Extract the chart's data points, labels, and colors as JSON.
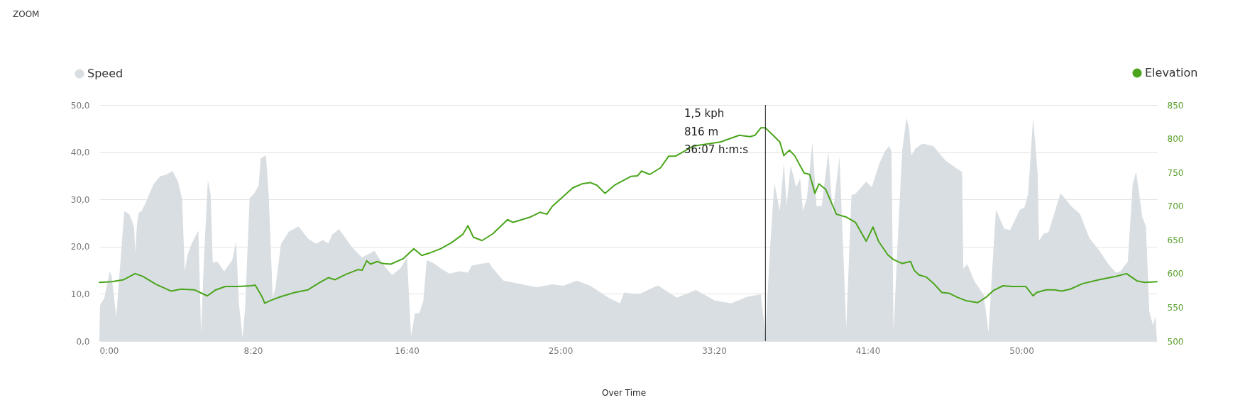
{
  "chart_data": {
    "type": "area",
    "title": "ZOOM",
    "xlim": [
      0,
      3441
    ],
    "xticks": [
      {
        "value": 0,
        "label": "0:00"
      },
      {
        "value": 500,
        "label": "8:20"
      },
      {
        "value": 1000,
        "label": "16:40"
      },
      {
        "value": 1500,
        "label": "25:00"
      },
      {
        "value": 2000,
        "label": "33:20"
      },
      {
        "value": 2500,
        "label": "41:40"
      },
      {
        "value": 3000,
        "label": "50:00"
      }
    ],
    "ylim": [
      0,
      50
    ],
    "yticks": [
      {
        "value": 0,
        "label": "0,0"
      },
      {
        "value": 10,
        "label": "10,0"
      },
      {
        "value": 20,
        "label": "20,0"
      },
      {
        "value": 30,
        "label": "30,0"
      },
      {
        "value": 40,
        "label": "40,0"
      },
      {
        "value": 50,
        "label": "50,0"
      }
    ],
    "y2lim": [
      500,
      850
    ],
    "y2ticks": [
      500,
      550,
      600,
      650,
      700,
      750,
      800,
      850
    ],
    "grid": "y",
    "legend": "top",
    "series": [
      {
        "name": "Speed",
        "color": "#d9dee2",
        "x": [
          0,
          2,
          16,
          34,
          40,
          55,
          81,
          97,
          106,
          113,
          117,
          122,
          128,
          137,
          150,
          176,
          198,
          216,
          238,
          256,
          269,
          278,
          287,
          300,
          322,
          331,
          340,
          353,
          362,
          369,
          384,
          406,
          432,
          445,
          454,
          466,
          474,
          489,
          503,
          518,
          525,
          542,
          551,
          564,
          573,
          591,
          617,
          648,
          679,
          705,
          727,
          745,
          758,
          780,
          802,
          820,
          855,
          895,
          926,
          952,
          979,
          1001,
          1014,
          1027,
          1041,
          1054,
          1065,
          1085,
          1111,
          1138,
          1173,
          1199,
          1212,
          1243,
          1268,
          1280,
          1315,
          1421,
          1474,
          1509,
          1553,
          1597,
          1659,
          1694,
          1707,
          1755,
          1817,
          1879,
          1941,
          2002,
          2055,
          2108,
          2152,
          2167,
          2183,
          2196,
          2214,
          2227,
          2236,
          2249,
          2267,
          2280,
          2289,
          2302,
          2320,
          2333,
          2350,
          2372,
          2386,
          2408,
          2430,
          2447,
          2460,
          2495,
          2513,
          2539,
          2557,
          2569,
          2577,
          2584,
          2596,
          2612,
          2626,
          2635,
          2641,
          2647,
          2655,
          2678,
          2713,
          2752,
          2784,
          2807,
          2811,
          2824,
          2846,
          2877,
          2893,
          2905,
          2917,
          2944,
          2963,
          2995,
          3010,
          3022,
          3038,
          3053,
          3057,
          3073,
          3088,
          3127,
          3166,
          3190,
          3221,
          3252,
          3283,
          3307,
          3322,
          3346,
          3362,
          3373,
          3381,
          3393,
          3405,
          3416,
          3428,
          3436,
          3441
        ],
        "values": [
          0,
          7.6,
          9.1,
          14.8,
          13.7,
          5.1,
          27.5,
          26.9,
          25.5,
          24.0,
          18.6,
          24.5,
          27.2,
          27.5,
          29.2,
          33.2,
          34.9,
          35.2,
          36.0,
          33.8,
          30.1,
          14.8,
          18.3,
          20.6,
          23.4,
          1.6,
          17.1,
          34.1,
          30.9,
          16.6,
          16.8,
          14.8,
          17.1,
          21.1,
          7.9,
          0.7,
          6.8,
          30.3,
          31.2,
          32.9,
          38.7,
          39.3,
          30.9,
          9.1,
          11.4,
          20.6,
          23.2,
          24.3,
          21.7,
          20.6,
          21.4,
          20.7,
          22.6,
          23.7,
          21.7,
          20.0,
          17.7,
          19.1,
          16.0,
          14.0,
          15.4,
          17.7,
          1.0,
          5.9,
          5.9,
          8.5,
          17.1,
          16.6,
          15.4,
          14.3,
          14.8,
          14.5,
          16.0,
          16.4,
          16.6,
          15.4,
          12.8,
          11.4,
          12.0,
          11.7,
          12.8,
          11.7,
          9.1,
          8.0,
          10.3,
          9.9,
          11.8,
          9.2,
          10.8,
          8.6,
          8.0,
          9.4,
          9.9,
          1.5,
          20.6,
          33.5,
          27.5,
          37.8,
          28.6,
          37.2,
          32.6,
          34.4,
          27.5,
          30.3,
          42.1,
          28.6,
          28.6,
          40.1,
          26.9,
          39.0,
          2.8,
          30.9,
          31.2,
          33.8,
          32.6,
          37.8,
          40.3,
          41.3,
          40.3,
          1.8,
          19.3,
          40.3,
          47.3,
          44.8,
          39.3,
          39.8,
          40.8,
          41.8,
          41.3,
          38.3,
          36.8,
          35.8,
          15.3,
          16.3,
          12.8,
          9.8,
          1.8,
          15.3,
          27.8,
          23.8,
          23.5,
          27.8,
          28.3,
          31.3,
          47.3,
          35.3,
          21.3,
          22.8,
          23.0,
          31.3,
          28.3,
          27.0,
          21.8,
          19.3,
          16.3,
          14.5,
          14.8,
          16.8,
          33.3,
          35.8,
          32.3,
          26.3,
          24.3,
          6.3,
          3.3,
          5.3,
          0
        ]
      },
      {
        "name": "Elevation",
        "type": "line",
        "axis": "y2",
        "color": "#4aa51b",
        "x": [
          0,
          40,
          79,
          116,
          141,
          185,
          234,
          265,
          309,
          351,
          379,
          410,
          450,
          494,
          507,
          529,
          538,
          556,
          591,
          635,
          679,
          714,
          745,
          767,
          802,
          842,
          855,
          870,
          882,
          904,
          921,
          948,
          988,
          1023,
          1049,
          1071,
          1111,
          1146,
          1182,
          1199,
          1217,
          1245,
          1280,
          1328,
          1346,
          1403,
          1434,
          1456,
          1474,
          1540,
          1570,
          1597,
          1619,
          1645,
          1676,
          1729,
          1751,
          1764,
          1791,
          1826,
          1852,
          1874,
          1932,
          2020,
          2082,
          2117,
          2133,
          2152,
          2167,
          2192,
          2214,
          2227,
          2245,
          2262,
          2293,
          2311,
          2328,
          2341,
          2363,
          2398,
          2429,
          2460,
          2495,
          2517,
          2535,
          2565,
          2583,
          2612,
          2639,
          2651,
          2667,
          2690,
          2713,
          2741,
          2764,
          2791,
          2819,
          2858,
          2885,
          2909,
          2940,
          2971,
          3014,
          3038,
          3049,
          3080,
          3108,
          3131,
          3159,
          3198,
          3252,
          3307,
          3342,
          3377,
          3401,
          3441
        ],
        "values": [
          587,
          588,
          591,
          600,
          596,
          584,
          574,
          577,
          576,
          567,
          576,
          581,
          581,
          582,
          583,
          566,
          556,
          560,
          566,
          572,
          576,
          586,
          594,
          591,
          599,
          606,
          605,
          619,
          614,
          618,
          615,
          614,
          622,
          637,
          627,
          630,
          637,
          646,
          658,
          671,
          654,
          649,
          659,
          680,
          676,
          684,
          691,
          688,
          700,
          727,
          733,
          735,
          731,
          719,
          731,
          744,
          745,
          752,
          747,
          757,
          774,
          774,
          789,
          795,
          805,
          803,
          805,
          816,
          816,
          805,
          795,
          775,
          783,
          775,
          749,
          747,
          719,
          733,
          725,
          688,
          684,
          676,
          648,
          669,
          648,
          628,
          621,
          615,
          618,
          605,
          598,
          595,
          586,
          572,
          571,
          565,
          560,
          557,
          565,
          575,
          582,
          581,
          581,
          567,
          572,
          576,
          576,
          574,
          577,
          585,
          591,
          596,
          600,
          589,
          587,
          588
        ]
      }
    ],
    "ref_lines": [
      {
        "axis": "x",
        "value": 2167,
        "color": "#222222"
      }
    ],
    "annotations": [
      "1,5 kph",
      "816 m",
      "36:07 h:m:s",
      "Over Time"
    ]
  }
}
